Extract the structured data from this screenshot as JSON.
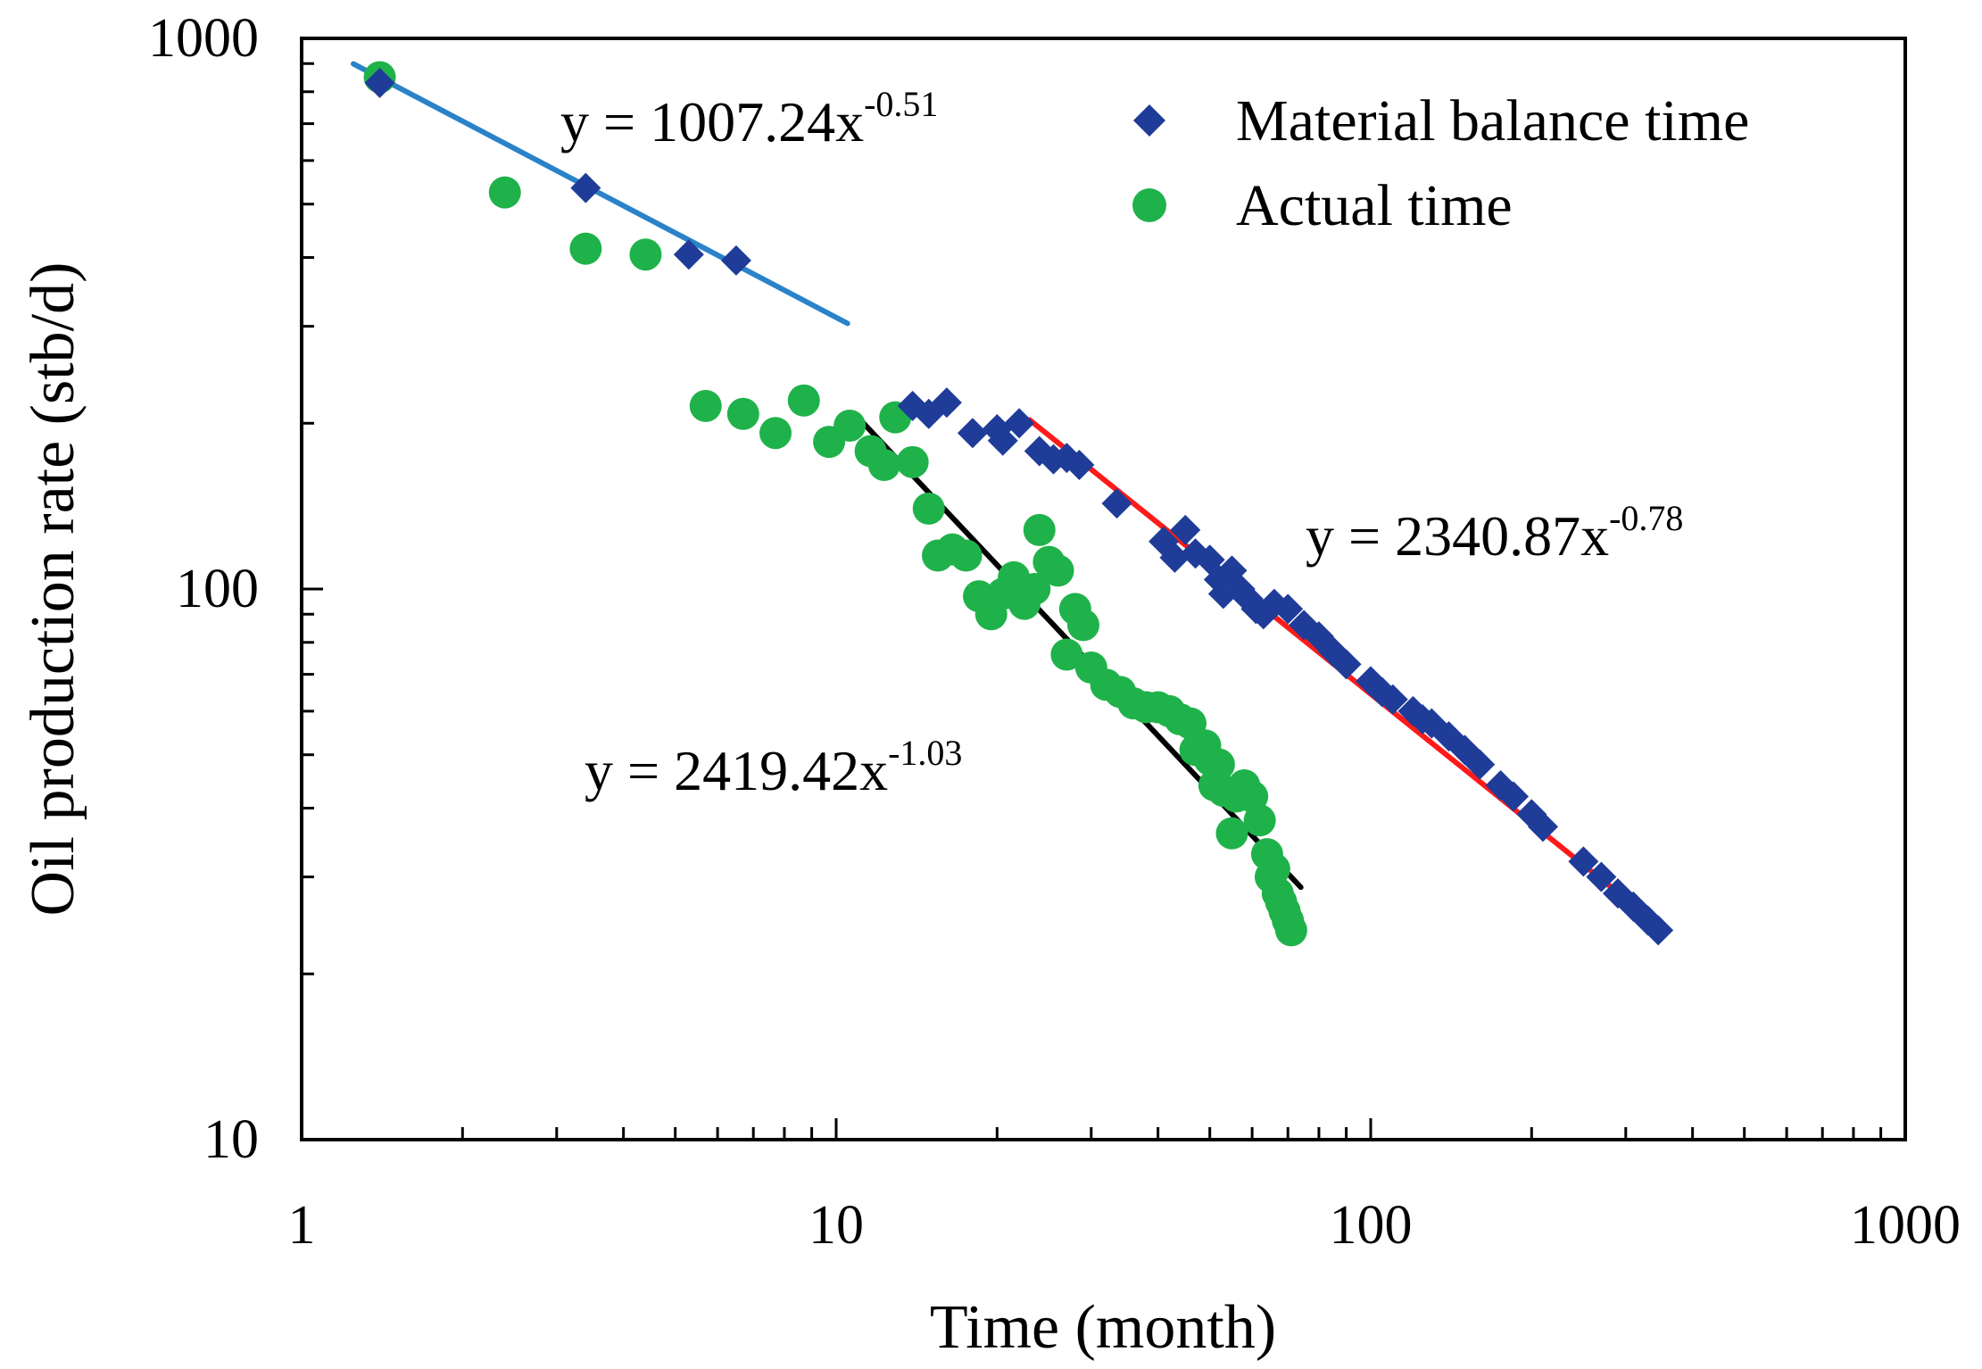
{
  "chart_data": {
    "type": "scatter",
    "xscale": "log",
    "yscale": "log",
    "xlim": [
      1,
      1000
    ],
    "ylim": [
      10,
      1000
    ],
    "xlabel": "Time (month)",
    "ylabel": "Oil production rate (stb/d)",
    "x_tick_labels": [
      "1",
      "10",
      "100",
      "1000"
    ],
    "y_tick_labels": [
      "10",
      "100",
      "1000"
    ],
    "legend": {
      "position": "top-right"
    },
    "series": [
      {
        "name": "Material balance time",
        "marker": "diamond",
        "color": "#1f3c99",
        "points": [
          [
            1.4,
            830
          ],
          [
            3.4,
            535
          ],
          [
            5.3,
            405
          ],
          [
            6.5,
            395
          ],
          [
            13.9,
            215
          ],
          [
            14.9,
            208
          ],
          [
            16.1,
            218
          ],
          [
            18,
            192
          ],
          [
            20,
            195
          ],
          [
            20.5,
            186
          ],
          [
            22,
            200
          ],
          [
            24,
            178
          ],
          [
            25.5,
            172
          ],
          [
            27,
            173
          ],
          [
            28.5,
            168
          ],
          [
            33.5,
            143
          ],
          [
            41,
            122
          ],
          [
            43,
            114
          ],
          [
            45,
            128
          ],
          [
            47,
            116
          ],
          [
            50,
            113
          ],
          [
            52,
            104
          ],
          [
            53,
            98
          ],
          [
            55,
            108
          ],
          [
            57,
            100
          ],
          [
            59,
            96
          ],
          [
            61,
            92
          ],
          [
            63,
            90
          ],
          [
            66,
            94
          ],
          [
            70,
            92
          ],
          [
            75,
            86
          ],
          [
            80,
            82
          ],
          [
            85,
            77
          ],
          [
            90,
            73
          ],
          [
            100,
            68
          ],
          [
            105,
            65
          ],
          [
            110,
            63
          ],
          [
            120,
            60
          ],
          [
            125,
            58
          ],
          [
            130,
            57
          ],
          [
            140,
            54
          ],
          [
            150,
            51
          ],
          [
            160,
            48
          ],
          [
            175,
            44
          ],
          [
            185,
            42
          ],
          [
            200,
            39
          ],
          [
            210,
            37
          ],
          [
            250,
            32
          ],
          [
            270,
            30
          ],
          [
            290,
            28
          ],
          [
            310,
            26.5
          ],
          [
            330,
            25
          ],
          [
            345,
            24
          ]
        ]
      },
      {
        "name": "Actual time",
        "marker": "circle",
        "color": "#1fb24a",
        "points": [
          [
            1.4,
            850
          ],
          [
            2.4,
            525
          ],
          [
            3.4,
            415
          ],
          [
            4.4,
            405
          ],
          [
            5.7,
            215
          ],
          [
            6.7,
            208
          ],
          [
            7.7,
            192
          ],
          [
            8.7,
            220
          ],
          [
            9.7,
            185
          ],
          [
            10.6,
            198
          ],
          [
            11.6,
            178
          ],
          [
            12.3,
            168
          ],
          [
            12.9,
            205
          ],
          [
            13.9,
            170
          ],
          [
            14.9,
            140
          ],
          [
            15.5,
            115
          ],
          [
            16.5,
            118
          ],
          [
            17.5,
            115
          ],
          [
            18.5,
            97
          ],
          [
            19.5,
            90
          ],
          [
            20.5,
            98
          ],
          [
            21.5,
            105
          ],
          [
            22.5,
            94
          ],
          [
            23.5,
            100
          ],
          [
            24,
            128
          ],
          [
            25,
            112
          ],
          [
            26,
            108
          ],
          [
            27,
            76
          ],
          [
            28,
            92
          ],
          [
            29,
            86
          ],
          [
            30,
            72
          ],
          [
            32,
            67
          ],
          [
            34,
            65
          ],
          [
            36,
            62
          ],
          [
            38,
            61
          ],
          [
            40,
            61
          ],
          [
            42,
            60
          ],
          [
            44,
            58
          ],
          [
            46,
            57
          ],
          [
            47,
            51
          ],
          [
            49,
            52
          ],
          [
            50,
            49
          ],
          [
            51,
            44
          ],
          [
            52,
            48
          ],
          [
            53,
            43
          ],
          [
            55,
            36
          ],
          [
            56,
            42
          ],
          [
            58,
            44
          ],
          [
            60,
            42
          ],
          [
            62,
            38
          ],
          [
            64,
            33
          ],
          [
            65,
            30
          ],
          [
            66,
            31
          ],
          [
            67,
            28
          ],
          [
            68,
            27
          ],
          [
            69,
            26
          ],
          [
            70,
            25
          ],
          [
            71,
            24
          ]
        ]
      }
    ],
    "trendlines": [
      {
        "label": "y = 1007.24x",
        "exponent": "-0.51",
        "a": 1007.24,
        "b": -0.51,
        "x_range": [
          1.25,
          10.5
        ],
        "color": "#2a82c9"
      },
      {
        "label": "y = 2419.42x",
        "exponent": "-1.03",
        "a": 2419.42,
        "b": -1.03,
        "x_range": [
          11,
          74
        ],
        "color": "#000000"
      },
      {
        "label": "y = 2340.87x",
        "exponent": "-0.78",
        "a": 2340.87,
        "b": -0.78,
        "x_range": [
          23,
          350
        ],
        "color": "#ff1a1a"
      }
    ]
  }
}
